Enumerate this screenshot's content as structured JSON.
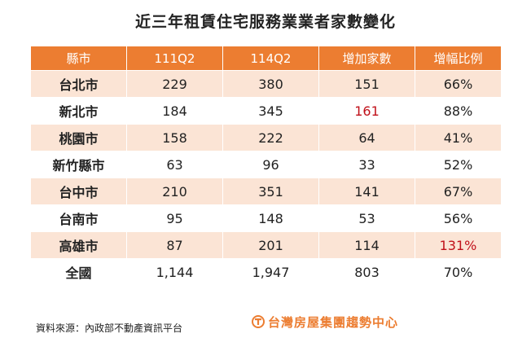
{
  "title": "近三年租賃住宅服務業業者家數變化",
  "table": {
    "headers": [
      "縣市",
      "111Q2",
      "114Q2",
      "增加家數",
      "增幅比例"
    ],
    "rows": [
      [
        "台北市",
        "229",
        "380",
        "151",
        "66%"
      ],
      [
        "新北市",
        "184",
        "345",
        "161",
        "88%"
      ],
      [
        "桃園市",
        "158",
        "222",
        "64",
        "41%"
      ],
      [
        "新竹縣市",
        "63",
        "96",
        "33",
        "52%"
      ],
      [
        "台中市",
        "210",
        "351",
        "141",
        "67%"
      ],
      [
        "台南市",
        "95",
        "148",
        "53",
        "56%"
      ],
      [
        "高雄市",
        "87",
        "201",
        "114",
        "131%"
      ],
      [
        "全國",
        "1,144",
        "1,947",
        "803",
        "70%"
      ]
    ]
  },
  "source": "資料來源：內政部不動產資訊平台",
  "logo": {
    "text": "台灣房屋集團趨勢中心",
    "icon": "taiwan-realty-logo-icon"
  },
  "colors": {
    "header_bg": "#ec7d31",
    "stripe_bg": "#fbe4d5",
    "highlight": "#c0111a",
    "brand": "#ec7d31"
  }
}
